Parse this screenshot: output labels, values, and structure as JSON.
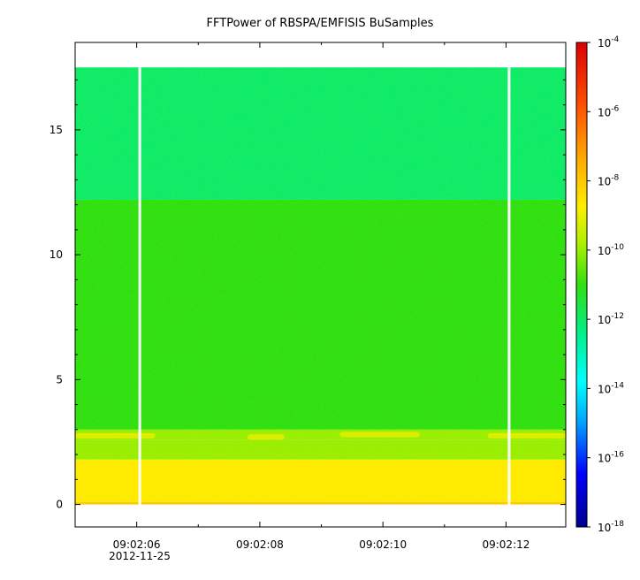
{
  "chart_data": {
    "type": "heatmap",
    "title": "FFTPower of RBSPA/EMFISIS  BuSamples",
    "xlabel": "",
    "ylabel": "",
    "x_ticks": [
      "09:02:06",
      "09:02:08",
      "09:02:10",
      "09:02:12"
    ],
    "x_date_label": "2012-11-25",
    "x_range_seconds": [
      5.0,
      12.97
    ],
    "x_tick_seconds": [
      6,
      8,
      10,
      12
    ],
    "y_ticks": [
      0,
      5,
      10,
      15
    ],
    "ylim": [
      -0.9,
      18.5
    ],
    "data_extent_y": [
      0,
      17.5
    ],
    "colorbar": {
      "scale": "log",
      "range": [
        1e-18,
        0.0001
      ],
      "ticks": [
        {
          "base": "10",
          "exp": "-4",
          "value": 0.0001
        },
        {
          "base": "10",
          "exp": "-6",
          "value": 1e-06
        },
        {
          "base": "10",
          "exp": "-8",
          "value": 1e-08
        },
        {
          "base": "10",
          "exp": "-10",
          "value": 1e-10
        },
        {
          "base": "10",
          "exp": "-12",
          "value": 1e-12
        },
        {
          "base": "10",
          "exp": "-14",
          "value": 1e-14
        },
        {
          "base": "10",
          "exp": "-16",
          "value": 1e-16
        },
        {
          "base": "10",
          "exp": "-18",
          "value": 1e-18
        }
      ]
    },
    "bands": [
      {
        "y0": 0.0,
        "y1": 0.1,
        "power": 1e-08
      },
      {
        "y0": 0.1,
        "y1": 1.8,
        "power": 2e-09
      },
      {
        "y0": 1.8,
        "y1": 2.6,
        "power": 1e-10
      },
      {
        "y0": 2.6,
        "y1": 3.0,
        "power": 1e-10
      },
      {
        "y0": 3.0,
        "y1": 12.2,
        "power": 1e-11
      },
      {
        "y0": 12.2,
        "y1": 17.5,
        "power": 1e-12
      }
    ],
    "features": [
      {
        "y": 2.75,
        "x0": 5.0,
        "x1": 6.3,
        "power": 1e-09
      },
      {
        "y": 2.7,
        "x0": 7.8,
        "x1": 8.4,
        "power": 1e-09
      },
      {
        "y": 2.8,
        "x0": 9.3,
        "x1": 10.6,
        "power": 1e-09
      },
      {
        "y": 2.75,
        "x0": 11.7,
        "x1": 12.97,
        "power": 1e-09
      }
    ],
    "gaps_seconds": [
      6.05,
      12.05
    ]
  }
}
